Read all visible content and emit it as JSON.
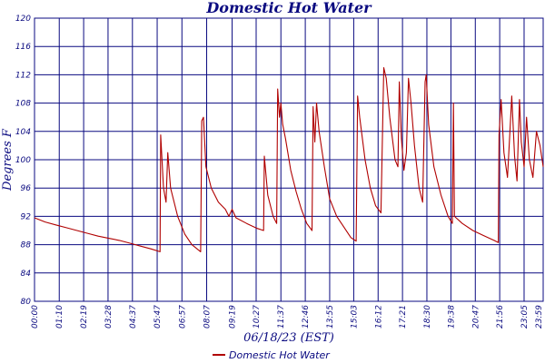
{
  "chart_data": {
    "type": "line",
    "title": "Domestic Hot Water",
    "xlabel": "06/18/23 (EST)",
    "ylabel": "Degrees F",
    "ylim": [
      80,
      120
    ],
    "y_ticks": [
      "80",
      "84",
      "88",
      "92",
      "96",
      "100",
      "104",
      "108",
      "112",
      "116",
      "120"
    ],
    "x_ticks": [
      "00:00",
      "01:10",
      "02:19",
      "03:28",
      "04:37",
      "05:47",
      "06:57",
      "08:07",
      "09:19",
      "10:27",
      "11:37",
      "12:46",
      "13:55",
      "15:03",
      "16:12",
      "17:21",
      "18:30",
      "19:38",
      "20:47",
      "21:56",
      "23:05",
      "23:59"
    ],
    "x_unit": "time of day",
    "grid": true,
    "legend": "bottom",
    "series": [
      {
        "name": "Domestic Hot Water",
        "color": "#b00000",
        "points": [
          [
            "00:00",
            91.8
          ],
          [
            "00:30",
            91.2
          ],
          [
            "01:00",
            90.8
          ],
          [
            "01:30",
            90.4
          ],
          [
            "02:00",
            90.0
          ],
          [
            "02:30",
            89.6
          ],
          [
            "03:00",
            89.2
          ],
          [
            "03:30",
            88.9
          ],
          [
            "04:00",
            88.6
          ],
          [
            "04:30",
            88.2
          ],
          [
            "05:00",
            87.8
          ],
          [
            "05:30",
            87.4
          ],
          [
            "05:55",
            87.0
          ],
          [
            "05:57",
            103.5
          ],
          [
            "06:05",
            96.0
          ],
          [
            "06:12",
            94.0
          ],
          [
            "06:17",
            101.0
          ],
          [
            "06:25",
            96.0
          ],
          [
            "06:45",
            92.0
          ],
          [
            "07:05",
            89.5
          ],
          [
            "07:25",
            88.0
          ],
          [
            "07:50",
            87.0
          ],
          [
            "07:53",
            105.5
          ],
          [
            "07:58",
            106.0
          ],
          [
            "08:05",
            99.0
          ],
          [
            "08:20",
            96.0
          ],
          [
            "08:40",
            94.0
          ],
          [
            "09:00",
            93.0
          ],
          [
            "09:10",
            92.0
          ],
          [
            "09:19",
            93.0
          ],
          [
            "09:30",
            91.8
          ],
          [
            "10:00",
            91.0
          ],
          [
            "10:30",
            90.3
          ],
          [
            "10:48",
            90.0
          ],
          [
            "10:50",
            100.5
          ],
          [
            "11:00",
            95.0
          ],
          [
            "11:15",
            92.0
          ],
          [
            "11:25",
            91.0
          ],
          [
            "11:28",
            110.0
          ],
          [
            "11:33",
            106.0
          ],
          [
            "11:37",
            108.0
          ],
          [
            "11:42",
            105.0
          ],
          [
            "11:50",
            103.0
          ],
          [
            "12:05",
            98.5
          ],
          [
            "12:20",
            95.5
          ],
          [
            "12:35",
            93.0
          ],
          [
            "12:50",
            91.0
          ],
          [
            "13:05",
            90.0
          ],
          [
            "13:08",
            107.5
          ],
          [
            "13:13",
            102.5
          ],
          [
            "13:18",
            108.0
          ],
          [
            "13:25",
            104.0
          ],
          [
            "13:40",
            99.0
          ],
          [
            "13:55",
            94.5
          ],
          [
            "14:15",
            92.0
          ],
          [
            "14:35",
            90.5
          ],
          [
            "14:55",
            89.0
          ],
          [
            "15:10",
            88.5
          ],
          [
            "15:14",
            109.0
          ],
          [
            "15:20",
            106.0
          ],
          [
            "15:35",
            100.0
          ],
          [
            "15:50",
            96.0
          ],
          [
            "16:05",
            93.5
          ],
          [
            "16:20",
            92.5
          ],
          [
            "16:28",
            113.0
          ],
          [
            "16:35",
            111.5
          ],
          [
            "16:45",
            106.0
          ],
          [
            "17:00",
            100.0
          ],
          [
            "17:08",
            99.0
          ],
          [
            "17:12",
            111.0
          ],
          [
            "17:18",
            103.0
          ],
          [
            "17:25",
            98.5
          ],
          [
            "17:32",
            101.0
          ],
          [
            "17:38",
            111.5
          ],
          [
            "17:45",
            108.0
          ],
          [
            "17:55",
            102.0
          ],
          [
            "18:08",
            96.0
          ],
          [
            "18:18",
            94.0
          ],
          [
            "18:25",
            111.0
          ],
          [
            "18:28",
            112.0
          ],
          [
            "18:35",
            105.0
          ],
          [
            "18:50",
            99.0
          ],
          [
            "19:10",
            95.0
          ],
          [
            "19:30",
            92.0
          ],
          [
            "19:42",
            91.0
          ],
          [
            "19:45",
            108.0
          ],
          [
            "19:48",
            92.0
          ],
          [
            "20:10",
            91.0
          ],
          [
            "20:40",
            90.0
          ],
          [
            "21:10",
            89.3
          ],
          [
            "21:40",
            88.6
          ],
          [
            "21:52",
            88.3
          ],
          [
            "21:54",
            103.5
          ],
          [
            "22:00",
            108.5
          ],
          [
            "22:08",
            101.0
          ],
          [
            "22:18",
            97.5
          ],
          [
            "22:25",
            104.0
          ],
          [
            "22:30",
            109.0
          ],
          [
            "22:38",
            100.5
          ],
          [
            "22:45",
            97.0
          ],
          [
            "22:52",
            108.5
          ],
          [
            "22:57",
            102.5
          ],
          [
            "23:05",
            99.0
          ],
          [
            "23:12",
            106.0
          ],
          [
            "23:20",
            100.0
          ],
          [
            "23:30",
            97.5
          ],
          [
            "23:40",
            104.0
          ],
          [
            "23:50",
            102.0
          ],
          [
            "23:59",
            99.0
          ]
        ]
      }
    ]
  }
}
